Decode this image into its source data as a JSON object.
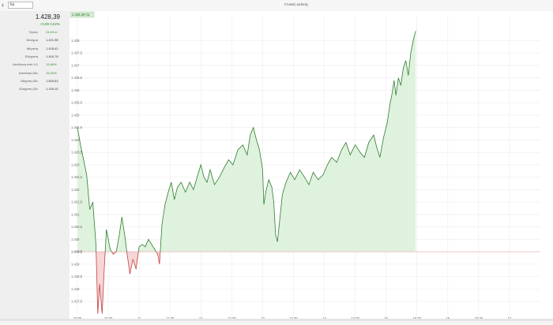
{
  "header": {
    "back_icon": "chevron-left-icon",
    "search_value": "Ιώ",
    "tab_title": "Γενικός Δείκτης",
    "tt_label": "ΓΔ"
  },
  "quote": {
    "price": "1.428,39",
    "change": "+0,89  0,62%",
    "stats": [
      {
        "label": "Όγκος",
        "value": "24,53 m",
        "color": "green"
      },
      {
        "label": "Άνοιγμα",
        "value": "1.421,98",
        "color": "dark"
      },
      {
        "label": "Μέγιστη",
        "value": "1.428,42",
        "color": "dark"
      },
      {
        "label": "Ελάχιστη",
        "value": "1.416,78",
        "color": "dark"
      },
      {
        "label": "Απόδοση από 1/1",
        "value": "13,46%",
        "color": "green"
      },
      {
        "label": "Απόδοση 52ε",
        "value": "15,34%",
        "color": "green"
      },
      {
        "label": "Μέγιστη 52ε",
        "value": "1.505,83",
        "color": "dark"
      },
      {
        "label": "Ελάχιστη 52ε",
        "value": "1.105,15",
        "color": "dark"
      }
    ]
  },
  "chart_data": {
    "type": "area",
    "current_label": "1.428,39 ΓΔ",
    "baseline": 1419.5,
    "baseline_label": "1.419,5",
    "ylim": [
      1416.9,
      1429.0
    ],
    "yticks": [
      1417.5,
      1418,
      1418.5,
      1419,
      1419.5,
      1420,
      1420.5,
      1421,
      1421.5,
      1422,
      1422.5,
      1423,
      1423.5,
      1424,
      1424.5,
      1425,
      1425.5,
      1426,
      1426.5,
      1427,
      1427.5,
      1428
    ],
    "ytick_labels": [
      "1.417,5",
      "1.418",
      "1.418,5",
      "1.419",
      "1.419,5",
      "1.420",
      "1.420,5",
      "1.421",
      "1.421,5",
      "1.422",
      "1.422,5",
      "1.423",
      "1.423,5",
      "1.424",
      "1.424,5",
      "1.425",
      "1.425,5",
      "1.426",
      "1.426,5",
      "1.427",
      "1.427,5",
      "1.428"
    ],
    "xlim": [
      10.0,
      17.5
    ],
    "xticks": [
      10.0,
      10.5,
      11.0,
      11.5,
      12.0,
      12.5,
      13.0,
      13.5,
      14.0,
      14.5,
      15.0,
      15.5,
      16.0,
      16.5,
      17.0
    ],
    "xtick_labels": [
      "10:00",
      "10:30",
      "11",
      "11:30",
      "12",
      "12:30",
      "13",
      "13:30",
      "14",
      "14:30",
      "15",
      "15:30",
      "16",
      "16:30",
      "17"
    ],
    "points": [
      [
        10.0,
        1424.5
      ],
      [
        10.05,
        1423.8
      ],
      [
        10.1,
        1423.2
      ],
      [
        10.15,
        1422.6
      ],
      [
        10.2,
        1421.2
      ],
      [
        10.25,
        1421.5
      ],
      [
        10.3,
        1419.8
      ],
      [
        10.33,
        1417.0
      ],
      [
        10.36,
        1418.2
      ],
      [
        10.4,
        1417.0
      ],
      [
        10.43,
        1418.6
      ],
      [
        10.47,
        1420.4
      ],
      [
        10.5,
        1420.0
      ],
      [
        10.53,
        1419.6
      ],
      [
        10.58,
        1419.4
      ],
      [
        10.63,
        1419.5
      ],
      [
        10.68,
        1420.2
      ],
      [
        10.72,
        1420.9
      ],
      [
        10.77,
        1420.1
      ],
      [
        10.8,
        1419.5
      ],
      [
        10.85,
        1418.6
      ],
      [
        10.9,
        1419.2
      ],
      [
        10.95,
        1418.8
      ],
      [
        11.0,
        1419.7
      ],
      [
        11.05,
        1419.8
      ],
      [
        11.1,
        1419.7
      ],
      [
        11.15,
        1420.0
      ],
      [
        11.2,
        1419.8
      ],
      [
        11.25,
        1419.6
      ],
      [
        11.3,
        1419.4
      ],
      [
        11.33,
        1419.0
      ],
      [
        11.37,
        1420.6
      ],
      [
        11.42,
        1421.4
      ],
      [
        11.47,
        1421.9
      ],
      [
        11.52,
        1422.3
      ],
      [
        11.57,
        1421.6
      ],
      [
        11.62,
        1422.1
      ],
      [
        11.68,
        1422.3
      ],
      [
        11.75,
        1421.9
      ],
      [
        11.82,
        1422.3
      ],
      [
        11.88,
        1422.0
      ],
      [
        11.95,
        1422.6
      ],
      [
        12.0,
        1423.0
      ],
      [
        12.05,
        1422.5
      ],
      [
        12.1,
        1422.3
      ],
      [
        12.15,
        1422.8
      ],
      [
        12.22,
        1422.2
      ],
      [
        12.3,
        1422.5
      ],
      [
        12.38,
        1422.9
      ],
      [
        12.45,
        1423.2
      ],
      [
        12.52,
        1423.0
      ],
      [
        12.6,
        1423.6
      ],
      [
        12.68,
        1423.8
      ],
      [
        12.75,
        1423.4
      ],
      [
        12.8,
        1424.2
      ],
      [
        12.85,
        1424.5
      ],
      [
        12.9,
        1424.0
      ],
      [
        12.95,
        1423.6
      ],
      [
        13.0,
        1422.8
      ],
      [
        13.02,
        1421.4
      ],
      [
        13.05,
        1421.9
      ],
      [
        13.1,
        1422.4
      ],
      [
        13.15,
        1422.1
      ],
      [
        13.18,
        1421.5
      ],
      [
        13.21,
        1420.2
      ],
      [
        13.24,
        1419.9
      ],
      [
        13.27,
        1420.6
      ],
      [
        13.32,
        1421.8
      ],
      [
        13.38,
        1422.3
      ],
      [
        13.45,
        1422.7
      ],
      [
        13.52,
        1422.4
      ],
      [
        13.6,
        1422.8
      ],
      [
        13.68,
        1422.5
      ],
      [
        13.75,
        1422.2
      ],
      [
        13.82,
        1422.7
      ],
      [
        13.9,
        1422.4
      ],
      [
        13.98,
        1422.6
      ],
      [
        14.05,
        1423.0
      ],
      [
        14.12,
        1423.3
      ],
      [
        14.2,
        1423.1
      ],
      [
        14.28,
        1423.6
      ],
      [
        14.35,
        1423.9
      ],
      [
        14.42,
        1423.4
      ],
      [
        14.5,
        1423.8
      ],
      [
        14.58,
        1423.5
      ],
      [
        14.65,
        1423.3
      ],
      [
        14.72,
        1423.9
      ],
      [
        14.8,
        1424.2
      ],
      [
        14.85,
        1423.7
      ],
      [
        14.9,
        1423.3
      ],
      [
        14.96,
        1424.1
      ],
      [
        15.02,
        1424.7
      ],
      [
        15.06,
        1425.4
      ],
      [
        15.1,
        1425.9
      ],
      [
        15.13,
        1426.4
      ],
      [
        15.16,
        1425.8
      ],
      [
        15.2,
        1426.5
      ],
      [
        15.24,
        1426.2
      ],
      [
        15.28,
        1426.9
      ],
      [
        15.32,
        1427.2
      ],
      [
        15.36,
        1426.6
      ],
      [
        15.4,
        1427.5
      ],
      [
        15.44,
        1428.0
      ],
      [
        15.48,
        1428.39
      ]
    ]
  }
}
